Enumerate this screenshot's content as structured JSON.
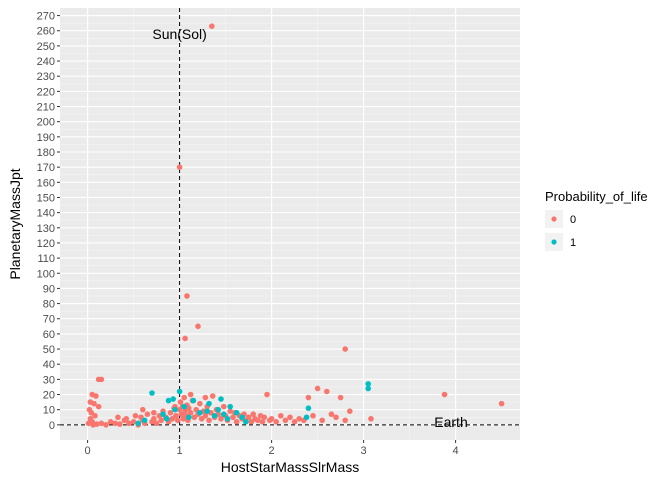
{
  "chart_data": {
    "type": "scatter",
    "xlabel": "HostStarMassSlrMass",
    "ylabel": "PlanetaryMassJpt",
    "xlim": [
      -0.3,
      4.7
    ],
    "ylim": [
      -10,
      275
    ],
    "x_ticks": [
      0,
      1,
      2,
      3,
      4
    ],
    "y_ticks": [
      0,
      10,
      20,
      30,
      40,
      50,
      60,
      70,
      80,
      90,
      100,
      110,
      120,
      130,
      140,
      150,
      160,
      170,
      180,
      190,
      200,
      210,
      220,
      230,
      240,
      250,
      260,
      270
    ],
    "grid": true,
    "legend": {
      "title": "Probability_of_life",
      "position": "right",
      "entries": [
        {
          "label": "0",
          "color": "#F8766D"
        },
        {
          "label": "1",
          "color": "#00BFC4"
        }
      ]
    },
    "reference_lines": [
      {
        "orientation": "vertical",
        "value": 1,
        "style": "dashed"
      },
      {
        "orientation": "horizontal",
        "value": 0,
        "style": "dashed"
      }
    ],
    "annotations": [
      {
        "text": "Sun(Sol)",
        "x": 1,
        "y": 258
      },
      {
        "text": "Earth",
        "x": 3.95,
        "y": 2
      }
    ],
    "series": [
      {
        "name": "0",
        "color": "#F8766D",
        "points": [
          [
            1.35,
            263
          ],
          [
            1.0,
            170
          ],
          [
            1.08,
            85
          ],
          [
            1.2,
            65
          ],
          [
            1.06,
            57
          ],
          [
            2.8,
            50
          ],
          [
            0.12,
            30
          ],
          [
            0.15,
            30
          ],
          [
            0.05,
            20
          ],
          [
            0.09,
            19
          ],
          [
            0.03,
            15
          ],
          [
            0.07,
            14
          ],
          [
            0.12,
            12
          ],
          [
            0.02,
            10
          ],
          [
            0.04,
            8
          ],
          [
            0.08,
            6
          ],
          [
            0.03,
            4
          ],
          [
            0.05,
            2
          ],
          [
            0.01,
            1
          ],
          [
            0.06,
            0
          ],
          [
            0.1,
            0.5
          ],
          [
            0.15,
            1
          ],
          [
            0.2,
            0
          ],
          [
            0.25,
            2
          ],
          [
            0.3,
            1
          ],
          [
            0.35,
            0.5
          ],
          [
            0.4,
            3
          ],
          [
            0.45,
            1
          ],
          [
            0.5,
            2
          ],
          [
            0.55,
            0
          ],
          [
            0.58,
            5
          ],
          [
            0.6,
            3
          ],
          [
            0.62,
            1
          ],
          [
            0.65,
            7
          ],
          [
            0.7,
            2
          ],
          [
            0.72,
            4
          ],
          [
            0.75,
            1
          ],
          [
            0.78,
            6
          ],
          [
            0.8,
            3
          ],
          [
            0.82,
            9
          ],
          [
            0.85,
            5
          ],
          [
            0.88,
            2
          ],
          [
            0.9,
            8
          ],
          [
            0.92,
            4
          ],
          [
            0.94,
            11
          ],
          [
            0.96,
            6
          ],
          [
            0.98,
            3
          ],
          [
            1.0,
            10
          ],
          [
            1.01,
            15
          ],
          [
            1.02,
            7
          ],
          [
            1.03,
            12
          ],
          [
            1.04,
            4
          ],
          [
            1.05,
            18
          ],
          [
            1.06,
            9
          ],
          [
            1.07,
            6
          ],
          [
            1.08,
            13
          ],
          [
            1.09,
            3
          ],
          [
            1.1,
            11
          ],
          [
            1.12,
            8
          ],
          [
            1.14,
            16
          ],
          [
            1.16,
            5
          ],
          [
            1.18,
            10
          ],
          [
            1.2,
            7
          ],
          [
            1.22,
            14
          ],
          [
            1.24,
            4
          ],
          [
            1.26,
            9
          ],
          [
            1.28,
            6
          ],
          [
            1.3,
            12
          ],
          [
            1.32,
            3
          ],
          [
            1.34,
            8
          ],
          [
            1.36,
            19
          ],
          [
            1.38,
            5
          ],
          [
            1.4,
            10
          ],
          [
            1.42,
            7
          ],
          [
            1.45,
            4
          ],
          [
            1.48,
            12
          ],
          [
            1.5,
            6
          ],
          [
            1.52,
            3
          ],
          [
            1.55,
            9
          ],
          [
            1.58,
            5
          ],
          [
            1.6,
            8
          ],
          [
            1.62,
            2
          ],
          [
            1.65,
            6
          ],
          [
            1.68,
            4
          ],
          [
            1.7,
            7
          ],
          [
            1.72,
            3
          ],
          [
            1.75,
            5
          ],
          [
            1.78,
            2
          ],
          [
            1.8,
            7
          ],
          [
            1.82,
            4
          ],
          [
            1.85,
            3
          ],
          [
            1.88,
            6
          ],
          [
            1.9,
            2
          ],
          [
            1.92,
            5
          ],
          [
            1.95,
            20
          ],
          [
            1.98,
            3
          ],
          [
            2.0,
            4
          ],
          [
            2.05,
            2
          ],
          [
            2.1,
            6
          ],
          [
            2.15,
            3
          ],
          [
            2.2,
            5
          ],
          [
            2.25,
            2
          ],
          [
            2.3,
            4
          ],
          [
            2.35,
            3
          ],
          [
            2.4,
            18
          ],
          [
            2.45,
            6
          ],
          [
            2.5,
            24
          ],
          [
            2.55,
            3
          ],
          [
            2.6,
            22
          ],
          [
            2.65,
            7
          ],
          [
            2.7,
            5
          ],
          [
            2.75,
            18
          ],
          [
            2.8,
            3
          ],
          [
            2.85,
            9
          ],
          [
            3.08,
            4
          ],
          [
            3.88,
            20
          ],
          [
            4.5,
            14
          ],
          [
            0.95,
            12
          ],
          [
            1.12,
            20
          ],
          [
            1.28,
            18
          ],
          [
            0.6,
            10
          ],
          [
            0.72,
            8
          ],
          [
            0.52,
            6
          ],
          [
            0.42,
            4
          ],
          [
            0.33,
            5
          ]
        ]
      },
      {
        "name": "1",
        "color": "#00BFC4",
        "points": [
          [
            3.05,
            27
          ],
          [
            3.05,
            24
          ],
          [
            0.7,
            21
          ],
          [
            1.0,
            22
          ],
          [
            1.45,
            17
          ],
          [
            0.88,
            16
          ],
          [
            0.93,
            17
          ],
          [
            1.15,
            16
          ],
          [
            1.32,
            14
          ],
          [
            1.55,
            12
          ],
          [
            1.22,
            8
          ],
          [
            1.3,
            9
          ],
          [
            1.38,
            6
          ],
          [
            1.42,
            10
          ],
          [
            1.48,
            7
          ],
          [
            1.52,
            4
          ],
          [
            1.62,
            8
          ],
          [
            1.68,
            5
          ],
          [
            1.72,
            2
          ],
          [
            0.82,
            7
          ],
          [
            0.86,
            4
          ],
          [
            0.95,
            10
          ],
          [
            1.05,
            12
          ],
          [
            1.1,
            5
          ],
          [
            2.4,
            11
          ],
          [
            2.38,
            5
          ],
          [
            0.55,
            1
          ],
          [
            0.62,
            3
          ]
        ]
      }
    ]
  }
}
